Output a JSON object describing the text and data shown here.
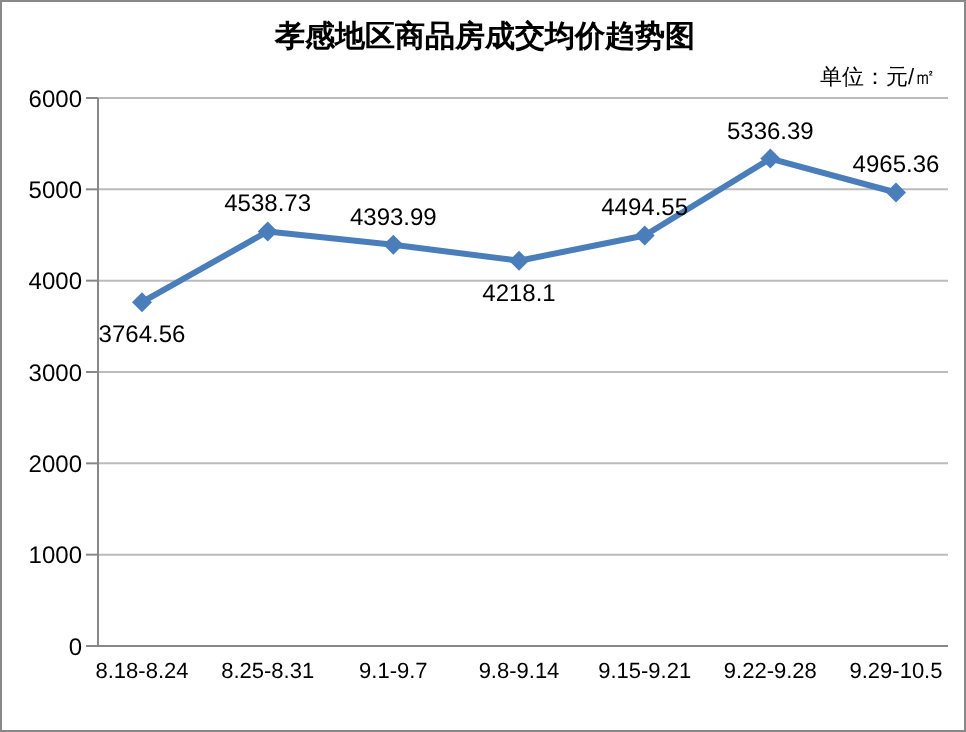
{
  "chart_data": {
    "type": "line",
    "title": "孝感地区商品房成交均价趋势图",
    "annotations": [
      "单位：元/㎡"
    ],
    "categories": [
      "8.18-8.24",
      "8.25-8.31",
      "9.1-9.7",
      "9.8-9.14",
      "9.15-9.21",
      "9.22-9.28",
      "9.29-10.5"
    ],
    "series": [
      {
        "color": "#4a7ebb",
        "values": [
          3764.56,
          4538.73,
          4393.99,
          4218.1,
          4494.55,
          5336.39,
          4965.36
        ]
      }
    ],
    "ylim": [
      0,
      6000
    ],
    "yticks": [
      0,
      1000,
      2000,
      3000,
      4000,
      5000,
      6000
    ],
    "grid": "y",
    "legend": false,
    "marker": "diamond",
    "line_style": "solid",
    "data_labels": true
  }
}
